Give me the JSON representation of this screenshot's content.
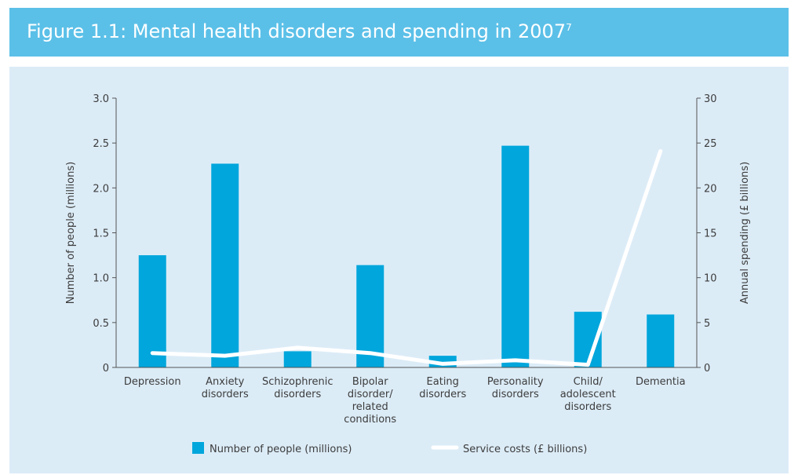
{
  "header": {
    "title": "Figure 1.1: Mental health disorders and spending in 2007",
    "title_superscript": "7"
  },
  "colors": {
    "header_bg": "#5bc0e8",
    "panel_bg": "#dcecf7",
    "bar": "#00a6dc",
    "line": "#ffffff"
  },
  "chart_data": {
    "type": "bar",
    "categories": [
      [
        "Depression"
      ],
      [
        "Anxiety",
        "disorders"
      ],
      [
        "Schizophrenic",
        "disorders"
      ],
      [
        "Bipolar",
        "disorder/",
        "related",
        "conditions"
      ],
      [
        "Eating",
        "disorders"
      ],
      [
        "Personality",
        "disorders"
      ],
      [
        "Child/",
        "adolescent",
        "disorders"
      ],
      [
        "Dementia"
      ]
    ],
    "series": [
      {
        "name": "Number of people (millions)",
        "type": "bar",
        "axis": "left",
        "values": [
          1.25,
          2.27,
          0.18,
          1.14,
          0.13,
          2.47,
          0.62,
          0.59
        ]
      },
      {
        "name": "Service costs (£ billions)",
        "type": "line",
        "axis": "right",
        "values": [
          1.6,
          1.3,
          2.2,
          1.6,
          0.4,
          0.8,
          0.3,
          24.1
        ]
      }
    ],
    "ylabel": "Number of people (millions)",
    "ylim": [
      0,
      3.0
    ],
    "yticks": [
      "0",
      "0.5",
      "1.0",
      "1.5",
      "2.0",
      "2.5",
      "3.0"
    ],
    "y2label": "Annual spending (£ billions)",
    "y2lim": [
      0,
      30
    ],
    "y2ticks": [
      "0",
      "5",
      "10",
      "15",
      "20",
      "25",
      "30"
    ],
    "grid": false,
    "legend": "bottom"
  }
}
